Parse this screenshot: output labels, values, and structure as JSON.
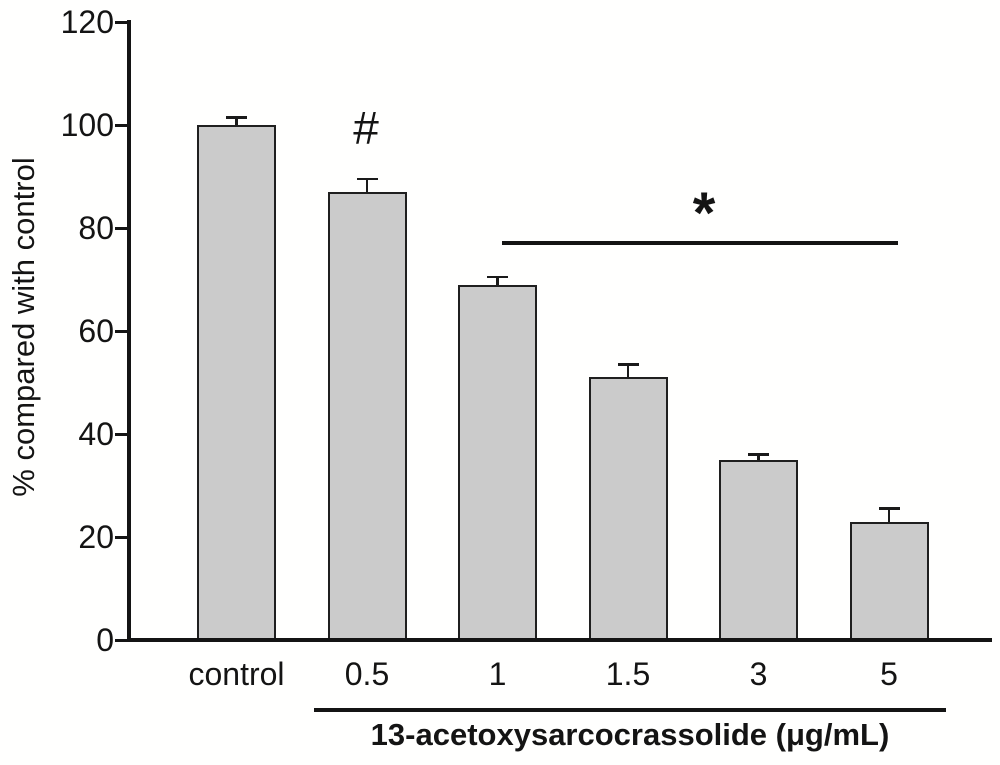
{
  "chart_data": {
    "type": "bar",
    "title": "",
    "categories": [
      "control",
      "0.5",
      "1",
      "1.5",
      "3",
      "5"
    ],
    "values": [
      100,
      87,
      69,
      51,
      35,
      23
    ],
    "errors": [
      1.5,
      2.5,
      1.5,
      2.5,
      1,
      2.5
    ],
    "xlabel": "13-acetoxysarcocrassolide (μg/mL)",
    "ylabel": "% compared with control",
    "ylim": [
      0,
      120
    ],
    "yticks": [
      0,
      20,
      40,
      60,
      80,
      100,
      120
    ],
    "grid": false,
    "legend_position": "none",
    "bar_fill_color": "#cbcbcb",
    "bar_border_color": "#1f1f1f",
    "axis_color": "#141414",
    "annotations": [
      {
        "symbol": "#",
        "above_category": "0.5"
      },
      {
        "symbol": "*",
        "from_category": "1",
        "to_category": "5",
        "line_y": 77
      }
    ]
  }
}
